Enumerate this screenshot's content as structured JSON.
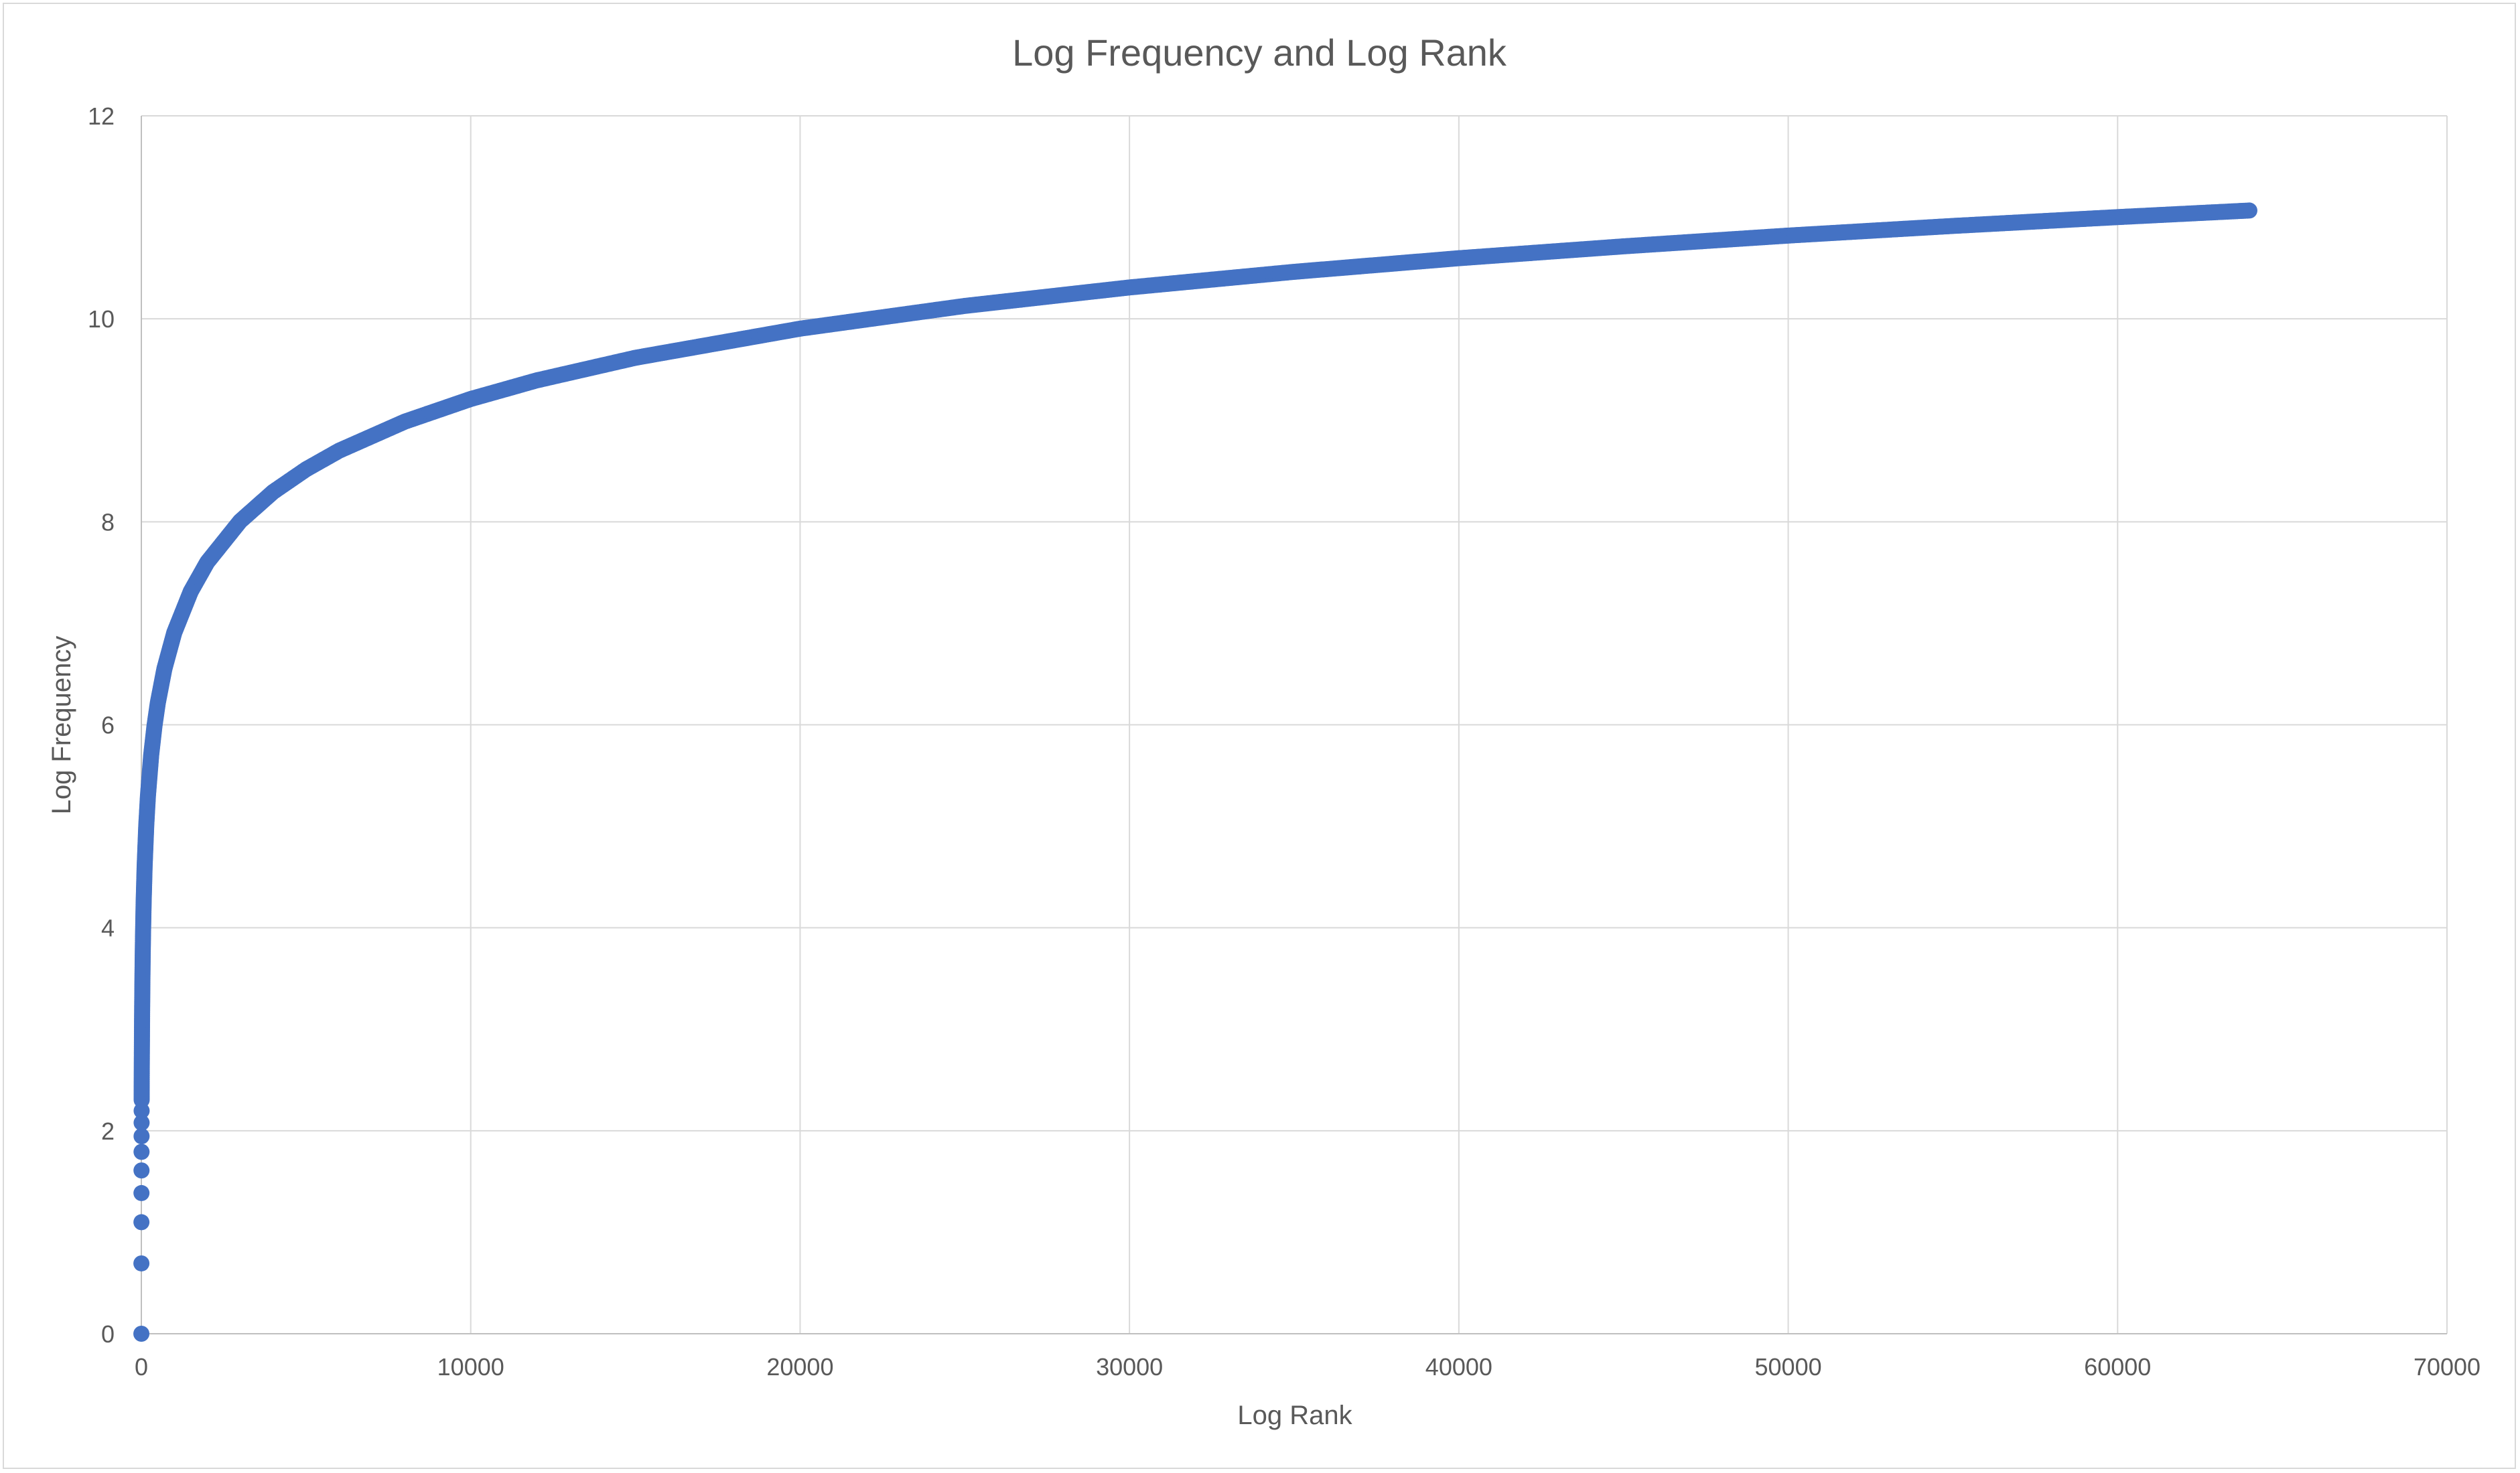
{
  "colors": {
    "series": "#4472c4",
    "gridline": "#d9d9d9",
    "text": "#595959"
  },
  "chart_data": {
    "type": "scatter",
    "title": "Log Frequency and Log Rank",
    "xlabel": "Log Rank",
    "ylabel": "Log Frequency",
    "xlim": [
      0,
      70000
    ],
    "ylim": [
      0,
      12
    ],
    "x_ticks": [
      "0",
      "10000",
      "20000",
      "30000",
      "40000",
      "50000",
      "60000",
      "70000"
    ],
    "y_ticks": [
      "0",
      "2",
      "4",
      "6",
      "8",
      "10",
      "12"
    ],
    "grid": true,
    "legend": "none",
    "series": [
      {
        "points": [
          [
            1,
            0
          ],
          [
            2,
            0.693
          ],
          [
            3,
            1.099
          ],
          [
            4,
            1.386
          ],
          [
            5,
            1.609
          ],
          [
            6,
            1.792
          ],
          [
            7,
            1.946
          ],
          [
            8,
            2.079
          ],
          [
            9,
            2.197
          ],
          [
            10,
            2.303
          ],
          [
            12,
            2.485
          ],
          [
            14,
            2.639
          ],
          [
            16,
            2.773
          ],
          [
            20,
            2.996
          ],
          [
            25,
            3.219
          ],
          [
            30,
            3.401
          ],
          [
            40,
            3.689
          ],
          [
            50,
            3.912
          ],
          [
            70,
            4.248
          ],
          [
            100,
            4.605
          ],
          [
            150,
            5.011
          ],
          [
            200,
            5.298
          ],
          [
            300,
            5.704
          ],
          [
            400,
            5.991
          ],
          [
            500,
            6.215
          ],
          [
            700,
            6.551
          ],
          [
            1000,
            6.908
          ],
          [
            1500,
            7.313
          ],
          [
            2000,
            7.601
          ],
          [
            3000,
            8.006
          ],
          [
            4000,
            8.294
          ],
          [
            5000,
            8.517
          ],
          [
            6000,
            8.7
          ],
          [
            8000,
            8.987
          ],
          [
            10000,
            9.21
          ],
          [
            12000,
            9.393
          ],
          [
            15000,
            9.616
          ],
          [
            20000,
            9.903
          ],
          [
            25000,
            10.127
          ],
          [
            30000,
            10.309
          ],
          [
            35000,
            10.463
          ],
          [
            40000,
            10.597
          ],
          [
            45000,
            10.714
          ],
          [
            50000,
            10.82
          ],
          [
            55000,
            10.915
          ],
          [
            60000,
            11.002
          ],
          [
            64000,
            11.067
          ]
        ]
      }
    ]
  }
}
